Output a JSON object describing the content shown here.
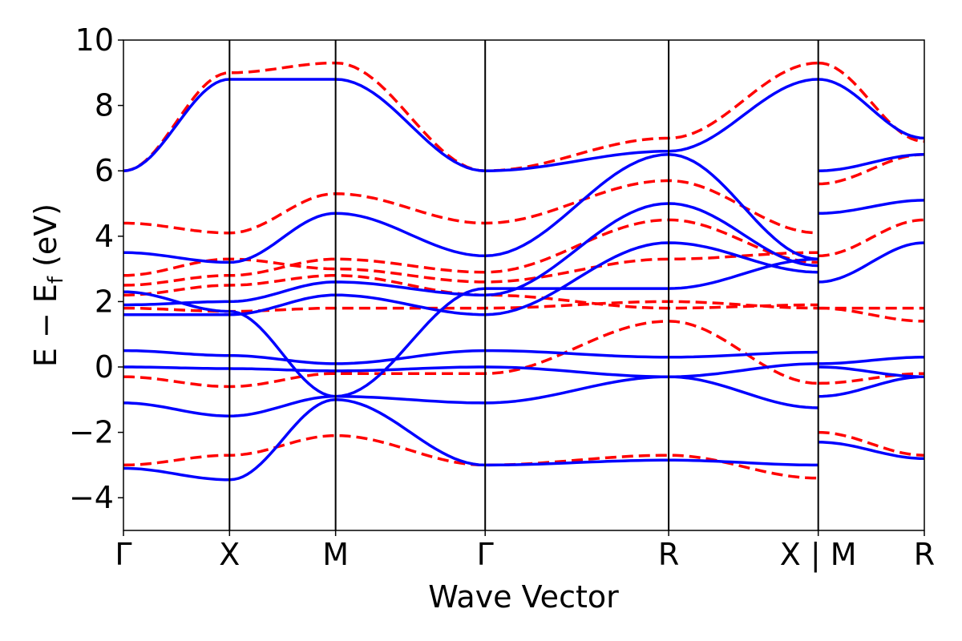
{
  "chart_data": {
    "type": "line",
    "title": "",
    "xlabel": "Wave Vector",
    "ylabel": "E − E",
    "ylabel_sub": "f",
    "ylabel_unit": " (eV)",
    "ylim": [
      -5,
      10
    ],
    "yticks": [
      -4,
      -2,
      0,
      2,
      4,
      6,
      8,
      10
    ],
    "ytick_labels": [
      "−4",
      "−2",
      "0",
      "2",
      "4",
      "6",
      "8",
      "10"
    ],
    "xlim": [
      0,
      7.55
    ],
    "high_symmetry_points": [
      {
        "label": "Γ",
        "x": 0
      },
      {
        "label": "X",
        "x": 1.0
      },
      {
        "label": "M",
        "x": 2.0
      },
      {
        "label": "Γ",
        "x": 3.41
      },
      {
        "label": "R",
        "x": 5.14
      },
      {
        "label": "X | M",
        "x": 6.55
      },
      {
        "label": "R",
        "x": 7.55
      }
    ],
    "series_styles": [
      {
        "name": "solid",
        "color": "#0000ff",
        "style": "solid"
      },
      {
        "name": "dashed",
        "color": "#ff0000",
        "style": "dashed"
      }
    ],
    "series": [
      {
        "name": "blue band",
        "style": "solid",
        "x": [
          0,
          1.0,
          2.0,
          3.41,
          5.14,
          6.55
        ],
        "y": [
          0.0,
          -0.05,
          -0.12,
          0.0,
          -0.3,
          0.1
        ]
      },
      {
        "name": "blue band",
        "style": "solid",
        "x": [
          0,
          1.0,
          2.0,
          3.41,
          5.14,
          6.55
        ],
        "y": [
          0.5,
          0.35,
          0.1,
          0.5,
          0.3,
          0.45
        ]
      },
      {
        "name": "blue band",
        "style": "solid",
        "x": [
          0,
          1.0,
          2.0,
          3.41,
          5.14,
          6.55
        ],
        "y": [
          -1.1,
          -1.5,
          -0.9,
          -1.1,
          -0.3,
          -1.25
        ]
      },
      {
        "name": "blue band",
        "style": "solid",
        "x": [
          0,
          1.0,
          2.0,
          3.41,
          5.14,
          6.55
        ],
        "y": [
          -3.1,
          -3.45,
          -1.0,
          -3.0,
          -2.85,
          -3.0
        ]
      },
      {
        "name": "blue band",
        "style": "solid",
        "x": [
          0,
          1.0,
          2.0,
          3.41,
          5.14,
          6.55
        ],
        "y": [
          1.6,
          1.6,
          2.2,
          1.6,
          3.8,
          2.9
        ]
      },
      {
        "name": "blue band",
        "style": "solid",
        "x": [
          0,
          1.0,
          2.0,
          3.41,
          5.14,
          6.55
        ],
        "y": [
          1.9,
          2.0,
          2.6,
          2.2,
          5.0,
          3.1
        ]
      },
      {
        "name": "blue band",
        "style": "solid",
        "x": [
          0,
          1.0,
          2.0,
          3.41,
          5.14,
          6.55
        ],
        "y": [
          3.5,
          3.2,
          4.7,
          3.4,
          6.5,
          3.3
        ]
      },
      {
        "name": "blue band",
        "style": "solid",
        "x": [
          0,
          1.0,
          2.0,
          3.41,
          5.14,
          6.55
        ],
        "y": [
          6.0,
          8.8,
          8.8,
          6.0,
          6.6,
          8.8
        ]
      },
      {
        "name": "blue band",
        "style": "solid",
        "x": [
          0,
          1.0,
          2.0,
          3.41,
          5.14,
          6.55
        ],
        "y": [
          2.3,
          1.7,
          -0.9,
          2.4,
          2.4,
          3.3
        ]
      },
      {
        "name": "blue band",
        "style": "solid",
        "x": [
          6.55,
          7.55
        ],
        "y": [
          6.0,
          6.5
        ]
      },
      {
        "name": "blue band",
        "style": "solid",
        "x": [
          6.55,
          7.55
        ],
        "y": [
          4.7,
          5.1
        ]
      },
      {
        "name": "blue band",
        "style": "solid",
        "x": [
          6.55,
          7.55
        ],
        "y": [
          2.6,
          3.8
        ]
      },
      {
        "name": "blue band",
        "style": "solid",
        "x": [
          6.55,
          7.55
        ],
        "y": [
          0.1,
          0.3
        ]
      },
      {
        "name": "blue band",
        "style": "solid",
        "x": [
          6.55,
          7.55
        ],
        "y": [
          0.0,
          -0.3
        ]
      },
      {
        "name": "blue band",
        "style": "solid",
        "x": [
          6.55,
          7.55
        ],
        "y": [
          -0.9,
          -0.3
        ]
      },
      {
        "name": "blue band",
        "style": "solid",
        "x": [
          6.55,
          7.55
        ],
        "y": [
          -2.3,
          -2.8
        ]
      },
      {
        "name": "blue band",
        "style": "solid",
        "x": [
          6.55,
          7.55
        ],
        "y": [
          8.8,
          7.0
        ]
      },
      {
        "name": "red band",
        "style": "dashed",
        "x": [
          0,
          1.0,
          2.0,
          3.41,
          5.14,
          6.55
        ],
        "y": [
          -3.0,
          -2.7,
          -2.1,
          -3.0,
          -2.7,
          -3.4
        ]
      },
      {
        "name": "red band",
        "style": "dashed",
        "x": [
          0,
          1.0,
          2.0,
          3.41,
          5.14,
          6.55
        ],
        "y": [
          -0.3,
          -0.6,
          -0.2,
          -0.2,
          1.4,
          -0.5
        ]
      },
      {
        "name": "red band",
        "style": "dashed",
        "x": [
          0,
          1.0,
          2.0,
          3.41,
          5.14,
          6.55
        ],
        "y": [
          1.8,
          1.7,
          1.8,
          1.8,
          2.0,
          1.8
        ]
      },
      {
        "name": "red band",
        "style": "dashed",
        "x": [
          0,
          1.0,
          2.0,
          3.41,
          5.14,
          6.55
        ],
        "y": [
          2.2,
          2.5,
          2.8,
          2.2,
          1.8,
          1.9
        ]
      },
      {
        "name": "red band",
        "style": "dashed",
        "x": [
          0,
          1.0,
          2.0,
          3.41,
          5.14,
          6.55
        ],
        "y": [
          2.5,
          2.8,
          3.3,
          2.9,
          4.5,
          3.2
        ]
      },
      {
        "name": "red band",
        "style": "dashed",
        "x": [
          0,
          1.0,
          2.0,
          3.41,
          5.14,
          6.55
        ],
        "y": [
          2.8,
          3.3,
          3.0,
          2.6,
          3.3,
          3.5
        ]
      },
      {
        "name": "red band",
        "style": "dashed",
        "x": [
          0,
          1.0,
          2.0,
          3.41,
          5.14,
          6.55
        ],
        "y": [
          4.4,
          4.1,
          5.3,
          4.4,
          5.7,
          4.1
        ]
      },
      {
        "name": "red band",
        "style": "dashed",
        "x": [
          0,
          1.0,
          2.0,
          3.41,
          5.14,
          6.55
        ],
        "y": [
          6.0,
          9.0,
          9.3,
          6.0,
          7.0,
          9.3
        ]
      },
      {
        "name": "red band",
        "style": "dashed",
        "x": [
          6.55,
          7.55
        ],
        "y": [
          5.6,
          6.5
        ]
      },
      {
        "name": "red band",
        "style": "dashed",
        "x": [
          6.55,
          7.55
        ],
        "y": [
          3.4,
          4.5
        ]
      },
      {
        "name": "red band",
        "style": "dashed",
        "x": [
          6.55,
          7.55
        ],
        "y": [
          1.8,
          1.8
        ]
      },
      {
        "name": "red band",
        "style": "dashed",
        "x": [
          6.55,
          7.55
        ],
        "y": [
          1.8,
          1.4
        ]
      },
      {
        "name": "red band",
        "style": "dashed",
        "x": [
          6.55,
          7.55
        ],
        "y": [
          -0.5,
          -0.2
        ]
      },
      {
        "name": "red band",
        "style": "dashed",
        "x": [
          6.55,
          7.55
        ],
        "y": [
          -2.0,
          -2.7
        ]
      },
      {
        "name": "red band",
        "style": "dashed",
        "x": [
          6.55,
          7.55
        ],
        "y": [
          9.3,
          6.9
        ]
      }
    ]
  }
}
